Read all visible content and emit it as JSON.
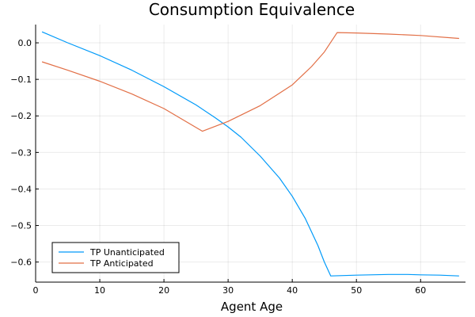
{
  "chart_data": {
    "type": "line",
    "title": "Consumption Equivalence",
    "xlabel": "Agent Age",
    "ylabel": "",
    "xlim": [
      0,
      67
    ],
    "ylim": [
      -0.655,
      0.05
    ],
    "xticks": [
      0,
      10,
      20,
      30,
      40,
      50,
      60
    ],
    "yticks": [
      0.0,
      -0.1,
      -0.2,
      -0.3,
      -0.4,
      -0.5,
      -0.6
    ],
    "ytick_labels": [
      "0.0",
      "−0.1",
      "−0.2",
      "−0.3",
      "−0.4",
      "−0.5",
      "−0.6"
    ],
    "xtick_labels": [
      "0",
      "10",
      "20",
      "30",
      "40",
      "50",
      "60"
    ],
    "grid": true,
    "legend_position": "bottom-left",
    "series": [
      {
        "name": "TP Unanticipated",
        "color": "#009af9",
        "x": [
          1,
          5,
          10,
          15,
          20,
          25,
          28,
          30,
          32,
          35,
          38,
          40,
          42,
          44,
          45,
          46,
          50,
          55,
          58,
          60,
          63,
          66
        ],
        "y": [
          0.03,
          0.0,
          -0.035,
          -0.075,
          -0.12,
          -0.17,
          -0.205,
          -0.23,
          -0.258,
          -0.31,
          -0.37,
          -0.42,
          -0.48,
          -0.555,
          -0.6,
          -0.638,
          -0.636,
          -0.634,
          -0.634,
          -0.635,
          -0.636,
          -0.638
        ]
      },
      {
        "name": "TP Anticipated",
        "color": "#e26f46",
        "x": [
          1,
          5,
          10,
          15,
          20,
          26,
          30,
          35,
          40,
          43,
          45,
          47,
          50,
          55,
          60,
          66
        ],
        "y": [
          -0.052,
          -0.075,
          -0.105,
          -0.14,
          -0.18,
          -0.242,
          -0.215,
          -0.172,
          -0.115,
          -0.065,
          -0.025,
          0.028,
          0.027,
          0.024,
          0.02,
          0.012
        ]
      }
    ]
  }
}
